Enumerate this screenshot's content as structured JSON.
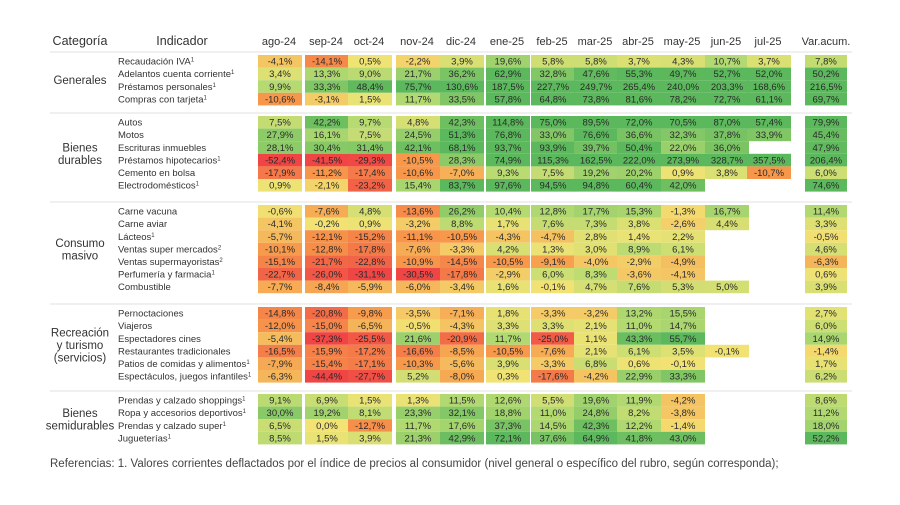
{
  "chart_data": {
    "type": "heatmap",
    "headers": {
      "category": "Categoría",
      "indicator": "Indicador",
      "accumulated": "Var.acum."
    },
    "months": [
      "ago-24",
      "sep-24",
      "oct-24",
      "nov-24",
      "dic-24",
      "ene-25",
      "feb-25",
      "mar-25",
      "abr-25",
      "may-25",
      "jun-25",
      "jul-25"
    ],
    "groups": [
      {
        "name": "Generales",
        "rows": [
          {
            "label": "Recaudación IVA",
            "note": "1",
            "values": [
              -4.1,
              -14.1,
              0.5,
              -2.2,
              3.9,
              19.6,
              5.8,
              5.8,
              3.7,
              4.3,
              10.7,
              3.7
            ],
            "accum": 7.8
          },
          {
            "label": "Adelantos cuenta corriente",
            "note": "1",
            "values": [
              3.4,
              13.3,
              9.0,
              21.7,
              36.2,
              62.9,
              32.8,
              47.6,
              55.3,
              49.7,
              52.7,
              52.0
            ],
            "accum": 50.2
          },
          {
            "label": "Préstamos personales",
            "note": "1",
            "values": [
              9.9,
              33.3,
              48.4,
              75.7,
              130.6,
              187.5,
              227.7,
              249.7,
              265.4,
              240.0,
              203.3,
              168.6
            ],
            "accum": 216.5
          },
          {
            "label": "Compras con tarjeta",
            "note": "1",
            "values": [
              -10.6,
              -3.1,
              1.5,
              11.7,
              33.5,
              57.8,
              64.8,
              73.8,
              81.6,
              78.2,
              72.7,
              61.1
            ],
            "accum": 69.7
          }
        ]
      },
      {
        "name": "Bienes durables",
        "rows": [
          {
            "label": "Autos",
            "note": "",
            "values": [
              7.5,
              42.2,
              9.7,
              4.8,
              42.3,
              114.8,
              75.0,
              89.5,
              72.0,
              70.5,
              87.0,
              57.4
            ],
            "accum": 79.9
          },
          {
            "label": "Motos",
            "note": "",
            "values": [
              27.9,
              16.1,
              7.5,
              24.5,
              51.3,
              76.8,
              33.0,
              76.6,
              36.6,
              32.3,
              37.8,
              33.9
            ],
            "accum": 45.4
          },
          {
            "label": "Escrituras inmuebles",
            "note": "",
            "values": [
              28.1,
              30.4,
              31.4,
              42.1,
              68.1,
              93.7,
              93.9,
              39.7,
              50.4,
              22.0,
              36.0,
              null
            ],
            "accum": 47.9
          },
          {
            "label": "Préstamos hipotecarios",
            "note": "1",
            "values": [
              -52.4,
              -41.5,
              -29.3,
              -10.5,
              28.3,
              74.9,
              115.3,
              162.5,
              222.0,
              273.9,
              328.7,
              357.5
            ],
            "accum": 206.4
          },
          {
            "label": "Cemento en bolsa",
            "note": "",
            "values": [
              -17.9,
              -11.2,
              -17.4,
              -10.6,
              -7.0,
              9.3,
              7.5,
              19.2,
              20.2,
              0.9,
              3.8,
              -10.7
            ],
            "accum": 6.0
          },
          {
            "label": "Electrodomésticos",
            "note": "1",
            "values": [
              0.9,
              -2.1,
              -23.2,
              15.4,
              83.7,
              97.6,
              94.5,
              94.8,
              60.4,
              42.0,
              null,
              null
            ],
            "accum": 74.6
          }
        ]
      },
      {
        "name": "Consumo masivo",
        "rows": [
          {
            "label": "Carne vacuna",
            "note": "",
            "values": [
              -0.6,
              -7.6,
              4.8,
              -13.6,
              26.2,
              10.4,
              12.8,
              17.7,
              15.3,
              -1.3,
              16.7,
              null
            ],
            "accum": 11.4
          },
          {
            "label": "Carne aviar",
            "note": "",
            "values": [
              -4.1,
              -0.2,
              0.9,
              -3.2,
              8.8,
              1.7,
              7.6,
              7.3,
              3.8,
              -2.6,
              4.4,
              null
            ],
            "accum": 3.3
          },
          {
            "label": "Lácteos",
            "note": "1",
            "values": [
              -5.7,
              -12.1,
              -15.2,
              -11.1,
              -10.5,
              -4.3,
              -4.7,
              2.8,
              1.4,
              2.2,
              null,
              null
            ],
            "accum": -0.5
          },
          {
            "label": "Ventas super mercados",
            "note": "2",
            "values": [
              -10.1,
              -12.8,
              -17.8,
              -7.6,
              -3.3,
              4.2,
              1.3,
              3.0,
              8.9,
              6.1,
              null,
              null
            ],
            "accum": 4.6
          },
          {
            "label": "Ventas supermayoristas",
            "note": "2",
            "values": [
              -15.1,
              -21.7,
              -22.8,
              -10.9,
              -14.5,
              -10.5,
              -9.1,
              -4.0,
              -2.9,
              -4.9,
              null,
              null
            ],
            "accum": -6.3
          },
          {
            "label": "Perfumería y farmacia",
            "note": "1",
            "values": [
              -22.7,
              -26.0,
              -31.1,
              -30.5,
              -17.8,
              -2.9,
              6.0,
              8.3,
              -3.6,
              -4.1,
              null,
              null
            ],
            "accum": 0.6
          },
          {
            "label": "Combustible",
            "note": "",
            "values": [
              -7.7,
              -8.4,
              -5.9,
              -6.0,
              -3.4,
              1.6,
              -0.1,
              4.7,
              7.6,
              5.3,
              5.0,
              null
            ],
            "accum": 3.9
          }
        ]
      },
      {
        "name": "Recreación y turismo (servicios)",
        "rows": [
          {
            "label": "Pernoctaciones",
            "note": "",
            "values": [
              -14.8,
              -20.8,
              -9.8,
              -3.5,
              -7.1,
              1.8,
              -3.3,
              -3.2,
              13.2,
              15.5,
              null,
              null
            ],
            "accum": 2.7
          },
          {
            "label": "Viajeros",
            "note": "",
            "values": [
              -12.0,
              -15.0,
              -6.5,
              -0.5,
              -4.3,
              3.3,
              3.3,
              2.1,
              11.0,
              14.7,
              null,
              null
            ],
            "accum": 6.0
          },
          {
            "label": "Espectadores cines",
            "note": "",
            "values": [
              -5.4,
              -37.3,
              -25.5,
              21.6,
              -20.9,
              11.7,
              -25.0,
              1.1,
              43.3,
              55.7,
              null,
              null
            ],
            "accum": 14.9
          },
          {
            "label": "Restaurantes tradicionales",
            "note": "",
            "values": [
              -16.5,
              -15.9,
              -17.2,
              -16.6,
              -8.5,
              -10.5,
              -7.6,
              2.1,
              6.1,
              3.5,
              -0.1,
              null
            ],
            "accum": -1.4
          },
          {
            "label": "Patios de comidas y alimentos",
            "note": "1",
            "values": [
              -7.9,
              -15.4,
              -17.1,
              -10.3,
              -5.6,
              3.9,
              -3.3,
              6.8,
              0.6,
              -0.1,
              null,
              null
            ],
            "accum": 1.7
          },
          {
            "label": "Espectáculos, juegos infantiles",
            "note": "1",
            "values": [
              -6.3,
              -44.4,
              -27.7,
              5.2,
              -8.0,
              0.3,
              -17.6,
              -4.2,
              22.9,
              33.3,
              null,
              null
            ],
            "accum": 6.2
          }
        ]
      },
      {
        "name": "Bienes semidurables",
        "rows": [
          {
            "label": "Prendas y calzado shoppings",
            "note": "1",
            "values": [
              9.1,
              6.9,
              1.5,
              1.3,
              11.5,
              12.6,
              5.5,
              19.6,
              11.9,
              -4.2,
              null,
              null
            ],
            "accum": 8.6
          },
          {
            "label": "Ropa y accesorios deportivos",
            "note": "1",
            "values": [
              30.0,
              19.2,
              8.1,
              23.3,
              32.1,
              18.8,
              11.0,
              24.8,
              8.2,
              -3.8,
              null,
              null
            ],
            "accum": 11.2
          },
          {
            "label": "Prendas y calzado super",
            "note": "1",
            "values": [
              6.5,
              0.0,
              -12.7,
              11.7,
              17.6,
              37.3,
              14.5,
              42.3,
              12.2,
              -1.4,
              null,
              null
            ],
            "accum": 18.0
          },
          {
            "label": "Jugueterías",
            "note": "1",
            "values": [
              8.5,
              1.5,
              3.9,
              21.3,
              42.9,
              72.1,
              37.6,
              64.9,
              41.8,
              43.0,
              null,
              null
            ],
            "accum": 52.2
          }
        ]
      }
    ],
    "colors": {
      "neg_strong": "#ef4545",
      "neg_mid": "#f79a4b",
      "neutral": "#f2e374",
      "pos_mid": "#b5da72",
      "pos_strong": "#5cb85c"
    }
  },
  "footnote": "Referencias: 1. Valores corrientes deflactados por el índice de precios al consumidor (nivel general o específico del rubro, según corresponda);"
}
